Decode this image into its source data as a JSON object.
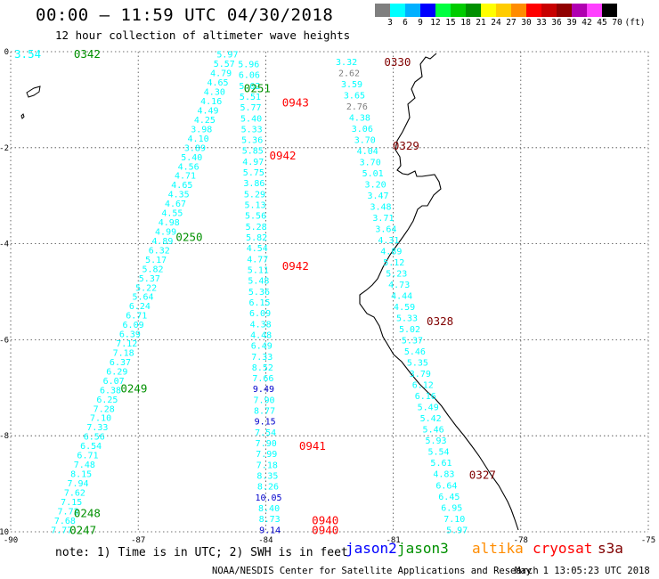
{
  "header": {
    "title": "00:00 – 11:59 UTC 04/30/2018",
    "subtitle": "12 hour collection of altimeter wave heights"
  },
  "legend": {
    "unit": "(ft)",
    "items": [
      {
        "label": "3",
        "color": "#7f7f7f"
      },
      {
        "label": "6",
        "color": "#00ffff"
      },
      {
        "label": "9",
        "color": "#00b0ff"
      },
      {
        "label": "12",
        "color": "#0000ff"
      },
      {
        "label": "15",
        "color": "#00ff40"
      },
      {
        "label": "18",
        "color": "#00cc00"
      },
      {
        "label": "21",
        "color": "#009000"
      },
      {
        "label": "24",
        "color": "#ffff00"
      },
      {
        "label": "27",
        "color": "#ffcc00"
      },
      {
        "label": "30",
        "color": "#ff8c00"
      },
      {
        "label": "33",
        "color": "#ff0000"
      },
      {
        "label": "36",
        "color": "#c80000"
      },
      {
        "label": "39",
        "color": "#900000"
      },
      {
        "label": "42",
        "color": "#b000b0"
      },
      {
        "label": "45",
        "color": "#ff40ff"
      },
      {
        "label": "70",
        "color": "#000000"
      }
    ]
  },
  "footer": {
    "note": "note: 1) Time is in UTC; 2) SWH is in feet",
    "satellites": [
      {
        "name": "jason2",
        "color": "#0000ff"
      },
      {
        "name": "jason3",
        "color": "#009000"
      },
      {
        "name": "altika",
        "color": "#ff8c00"
      },
      {
        "name": "cryosat",
        "color": "#ff0000"
      },
      {
        "name": "s3a",
        "color": "#800000"
      }
    ],
    "credit": "NOAA/NESDIS Center for Satellite Applications and Research",
    "stamp": "May  1 13:05:23 UTC 2018"
  },
  "chart_data": {
    "type": "scatter",
    "x_ticks": [
      "-90",
      "-87",
      "-84",
      "-81",
      "-78",
      "-75"
    ],
    "y_ticks": [
      "0",
      "-2",
      "-4",
      "-6",
      "-8",
      "-10"
    ],
    "xlim": [
      -90,
      -75
    ],
    "ylim": [
      -10,
      0
    ],
    "grid": true,
    "tracks": [
      {
        "name": "track-0342",
        "color": "#00ffff",
        "start": {
          "lon": -84.9,
          "lat": -0.05
        },
        "end": {
          "lon": -88.8,
          "lat": -9.95
        },
        "values": [
          "5.97",
          "5.57",
          "4.79",
          "4.65",
          "4.30",
          "4.16",
          "4.49",
          "4.25",
          "3.98",
          "4.10",
          "3.89",
          "5.40",
          "4.56",
          "4.71",
          "4.65",
          "4.35",
          "4.67",
          "4.55",
          "4.98",
          "4.99",
          "4.89",
          "6.32",
          "5.17",
          "5.82",
          "5.37",
          "5.22",
          "5.64",
          "6.24",
          "6.71",
          "6.09",
          "6.39",
          "7.12",
          "7.18",
          "6.37",
          "6.29",
          "6.07",
          "6.38",
          "6.25",
          "7.28",
          "7.10",
          "7.33",
          "6.56",
          "6.54",
          "6.71",
          "7.48",
          "8.15",
          "7.94",
          "7.62",
          "7.15",
          "7.72",
          "7.68",
          "7.77"
        ]
      },
      {
        "name": "track-0943",
        "color": "#00ffff",
        "start": {
          "lon": -84.4,
          "lat": -0.25
        },
        "end": {
          "lon": -83.9,
          "lat": -9.95
        },
        "values": [
          "5.96",
          "6.06",
          "5.02",
          "5.51",
          "5.77",
          "5.40",
          "5.33",
          "5.36",
          "5.85",
          "4.97",
          "5.75",
          "3.86",
          "5.29",
          "5.13",
          "5.56",
          "5.28",
          "5.82",
          "4.54",
          "4.77",
          "5.11",
          "5.48",
          "5.36",
          "6.15",
          "6.09",
          "4.38",
          "4.48",
          "6.49",
          "7.33",
          "8.52",
          "7.66",
          "9.49",
          "7.90",
          "8.77",
          "9.15",
          "7.54",
          "7.90",
          "7.99",
          "7.18",
          "8.35",
          "8.26",
          "10.05",
          "8.40",
          "8.73",
          "9.14"
        ]
      },
      {
        "name": "track-0330",
        "color": "#00ffff",
        "start": {
          "lon": -82.1,
          "lat": -0.2
        },
        "end": {
          "lon": -79.5,
          "lat": -9.95
        },
        "values": [
          "3.32",
          "2.62",
          "3.59",
          "3.65",
          "2.76",
          "4.38",
          "3.06",
          "3.70",
          "4.04",
          "3.70",
          "5.01",
          "3.20",
          "3.47",
          "3.48",
          "3.71",
          "3.64",
          "4.31",
          "4.89",
          "5.12",
          "5.23",
          "4.73",
          "4.44",
          "4.59",
          "5.33",
          "5.02",
          "5.37",
          "5.46",
          "5.35",
          "3.79",
          "6.12",
          "6.16",
          "5.49",
          "5.42",
          "5.46",
          "5.93",
          "5.54",
          "5.61",
          "4.83",
          "6.64",
          "6.45",
          "6.95",
          "7.10",
          "5.97"
        ]
      }
    ],
    "pass_labels": [
      {
        "text": "0342",
        "lon": -88.2,
        "lat": -0.04,
        "color": "#009000"
      },
      {
        "text": "3.54",
        "lon": -89.6,
        "lat": -0.04,
        "color": "#00ffff"
      },
      {
        "text": "0251",
        "lon": -84.2,
        "lat": -0.75,
        "color": "#009000"
      },
      {
        "text": "0943",
        "lon": -83.3,
        "lat": -1.05,
        "color": "#ff0000"
      },
      {
        "text": "0330",
        "lon": -80.9,
        "lat": -0.2,
        "color": "#800000"
      },
      {
        "text": "0329",
        "lon": -80.7,
        "lat": -1.95,
        "color": "#800000"
      },
      {
        "text": "0942",
        "lon": -83.6,
        "lat": -2.15,
        "color": "#ff0000"
      },
      {
        "text": "0250",
        "lon": -85.8,
        "lat": -3.85,
        "color": "#009000"
      },
      {
        "text": "0942",
        "lon": -83.3,
        "lat": -4.45,
        "color": "#ff0000"
      },
      {
        "text": "0328",
        "lon": -79.9,
        "lat": -5.6,
        "color": "#800000"
      },
      {
        "text": "0249",
        "lon": -87.1,
        "lat": -7.0,
        "color": "#009000"
      },
      {
        "text": "0941",
        "lon": -82.9,
        "lat": -8.2,
        "color": "#ff0000"
      },
      {
        "text": "0327",
        "lon": -78.9,
        "lat": -8.8,
        "color": "#800000"
      },
      {
        "text": "0248",
        "lon": -88.2,
        "lat": -9.6,
        "color": "#009000"
      },
      {
        "text": "0940",
        "lon": -82.6,
        "lat": -9.75,
        "color": "#ff0000"
      },
      {
        "text": "0247",
        "lon": -88.3,
        "lat": -9.95,
        "color": "#009000"
      },
      {
        "text": "0940",
        "lon": -82.6,
        "lat": -9.95,
        "color": "#ff0000"
      }
    ]
  }
}
